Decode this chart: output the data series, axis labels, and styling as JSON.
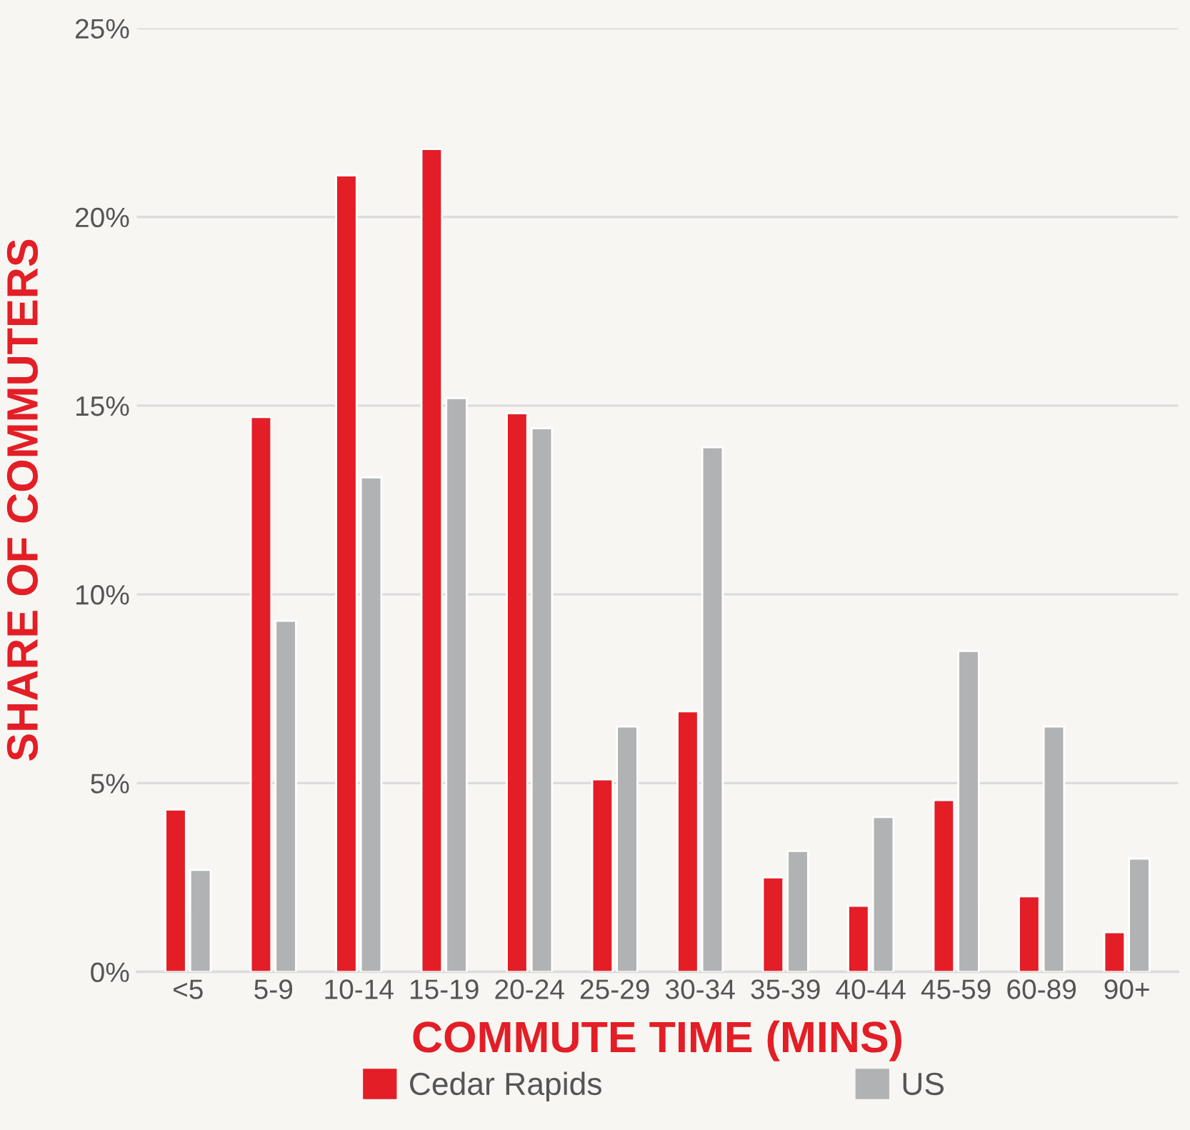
{
  "chart_data": {
    "type": "bar",
    "xlabel": "COMMUTE TIME (MINS)",
    "ylabel": "SHARE OF COMMUTERS",
    "categories": [
      "<5",
      "5-9",
      "10-14",
      "15-19",
      "20-24",
      "25-29",
      "30-34",
      "35-39",
      "40-44",
      "45-59",
      "60-89",
      "90+"
    ],
    "series": [
      {
        "name": "Cedar Rapids",
        "color": "#e31e26",
        "values": [
          4.3,
          14.7,
          21.1,
          21.8,
          14.8,
          5.1,
          6.9,
          2.5,
          1.75,
          4.55,
          2.0,
          1.05
        ]
      },
      {
        "name": "US",
        "color": "#b1b2b4",
        "values": [
          2.7,
          9.3,
          13.1,
          15.2,
          14.4,
          6.5,
          13.9,
          3.2,
          4.1,
          8.5,
          6.5,
          3.0
        ]
      }
    ],
    "ylim": [
      0,
      25
    ],
    "yticks": [
      {
        "value": 0,
        "label": "0%"
      },
      {
        "value": 5,
        "label": "5%"
      },
      {
        "value": 10,
        "label": "10%"
      },
      {
        "value": 15,
        "label": "15%"
      },
      {
        "value": 20,
        "label": "20%"
      },
      {
        "value": 25,
        "label": "25%"
      }
    ],
    "grid": "y",
    "legend": "bottom"
  }
}
